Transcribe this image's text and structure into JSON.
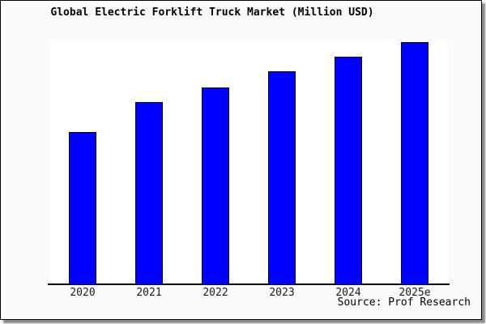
{
  "chart_data": {
    "type": "bar",
    "title": "Global Electric Forklift Truck Market (Million USD)",
    "categories": [
      "2020",
      "2021",
      "2022",
      "2023",
      "2024",
      "2025e"
    ],
    "values": [
      63,
      75.3,
      81.3,
      88,
      94,
      100
    ],
    "value_note": "no y-axis labels shown; values are relative bar heights as % of tallest bar (2025e = 100)",
    "xlabel": "",
    "ylabel": "",
    "ylim": [
      0,
      100
    ],
    "grid": false,
    "legend": false,
    "bar_color": "#0000ff",
    "bar_edge_color": "#000000",
    "source_label": "Source: Prof Research"
  }
}
